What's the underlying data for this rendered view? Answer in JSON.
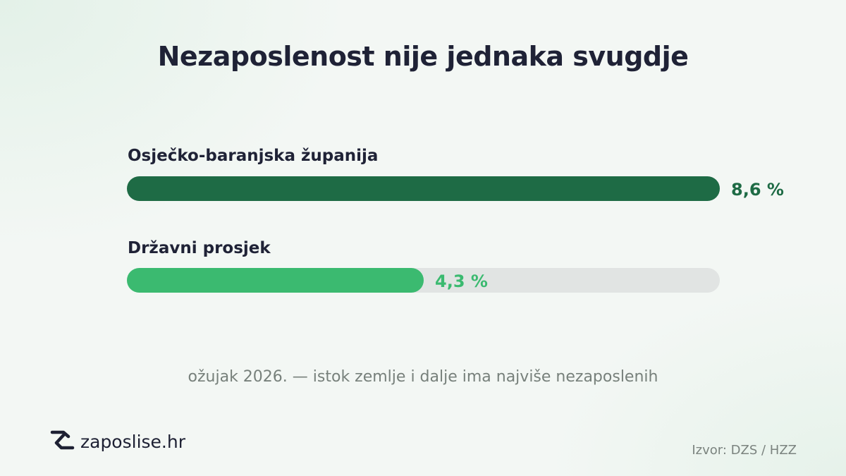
{
  "chart_data": {
    "type": "bar",
    "orientation": "horizontal",
    "title": "Nezaposlenost nije jednaka svugdje",
    "categories": [
      "Osječko-baranjska županija",
      "Državni prosjek"
    ],
    "values": [
      8.6,
      4.3
    ],
    "value_labels": [
      "8,6 %",
      "4,3 %"
    ],
    "unit": "%",
    "xlim": [
      0,
      8.6
    ],
    "colors": [
      "#1e6b45",
      "#3bba70"
    ],
    "track_color": "#e1e4e3",
    "grid": false
  },
  "caption": "ožujak 2026. — istok zemlje i dalje ima najviše nezaposlenih",
  "brand": {
    "name": "zaposlise.hr",
    "icon": "zaposlise-logo-icon"
  },
  "source": "Izvor: DZS / HZZ"
}
